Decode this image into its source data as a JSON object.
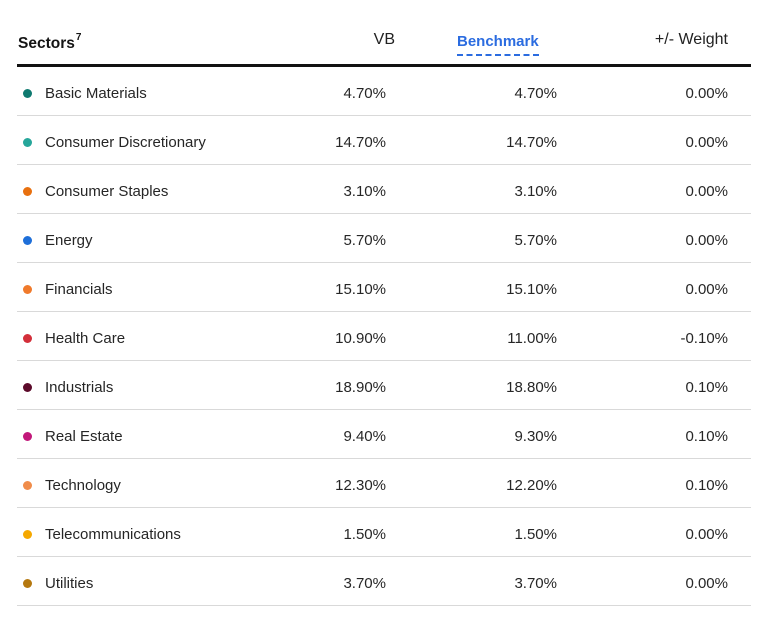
{
  "header": {
    "sectors": "Sectors",
    "sectors_sup": "7",
    "vb": "VB",
    "benchmark": "Benchmark",
    "weight": "+/- Weight"
  },
  "rows": [
    {
      "name": "Basic Materials",
      "vb": "4.70%",
      "benchmark": "4.70%",
      "weight": "0.00%",
      "color": "#0f7a70"
    },
    {
      "name": "Consumer Discretionary",
      "vb": "14.70%",
      "benchmark": "14.70%",
      "weight": "0.00%",
      "color": "#26a69a"
    },
    {
      "name": "Consumer Staples",
      "vb": "3.10%",
      "benchmark": "3.10%",
      "weight": "0.00%",
      "color": "#e8700f"
    },
    {
      "name": "Energy",
      "vb": "5.70%",
      "benchmark": "5.70%",
      "weight": "0.00%",
      "color": "#1e6fd9"
    },
    {
      "name": "Financials",
      "vb": "15.10%",
      "benchmark": "15.10%",
      "weight": "0.00%",
      "color": "#f07a2b"
    },
    {
      "name": "Health Care",
      "vb": "10.90%",
      "benchmark": "11.00%",
      "weight": "-0.10%",
      "color": "#d32f3a"
    },
    {
      "name": "Industrials",
      "vb": "18.90%",
      "benchmark": "18.80%",
      "weight": "0.10%",
      "color": "#5c0a2a"
    },
    {
      "name": "Real Estate",
      "vb": "9.40%",
      "benchmark": "9.30%",
      "weight": "0.10%",
      "color": "#c2187a"
    },
    {
      "name": "Technology",
      "vb": "12.30%",
      "benchmark": "12.20%",
      "weight": "0.10%",
      "color": "#f08c4a"
    },
    {
      "name": "Telecommunications",
      "vb": "1.50%",
      "benchmark": "1.50%",
      "weight": "0.00%",
      "color": "#f5a800"
    },
    {
      "name": "Utilities",
      "vb": "3.70%",
      "benchmark": "3.70%",
      "weight": "0.00%",
      "color": "#b5780f"
    }
  ]
}
